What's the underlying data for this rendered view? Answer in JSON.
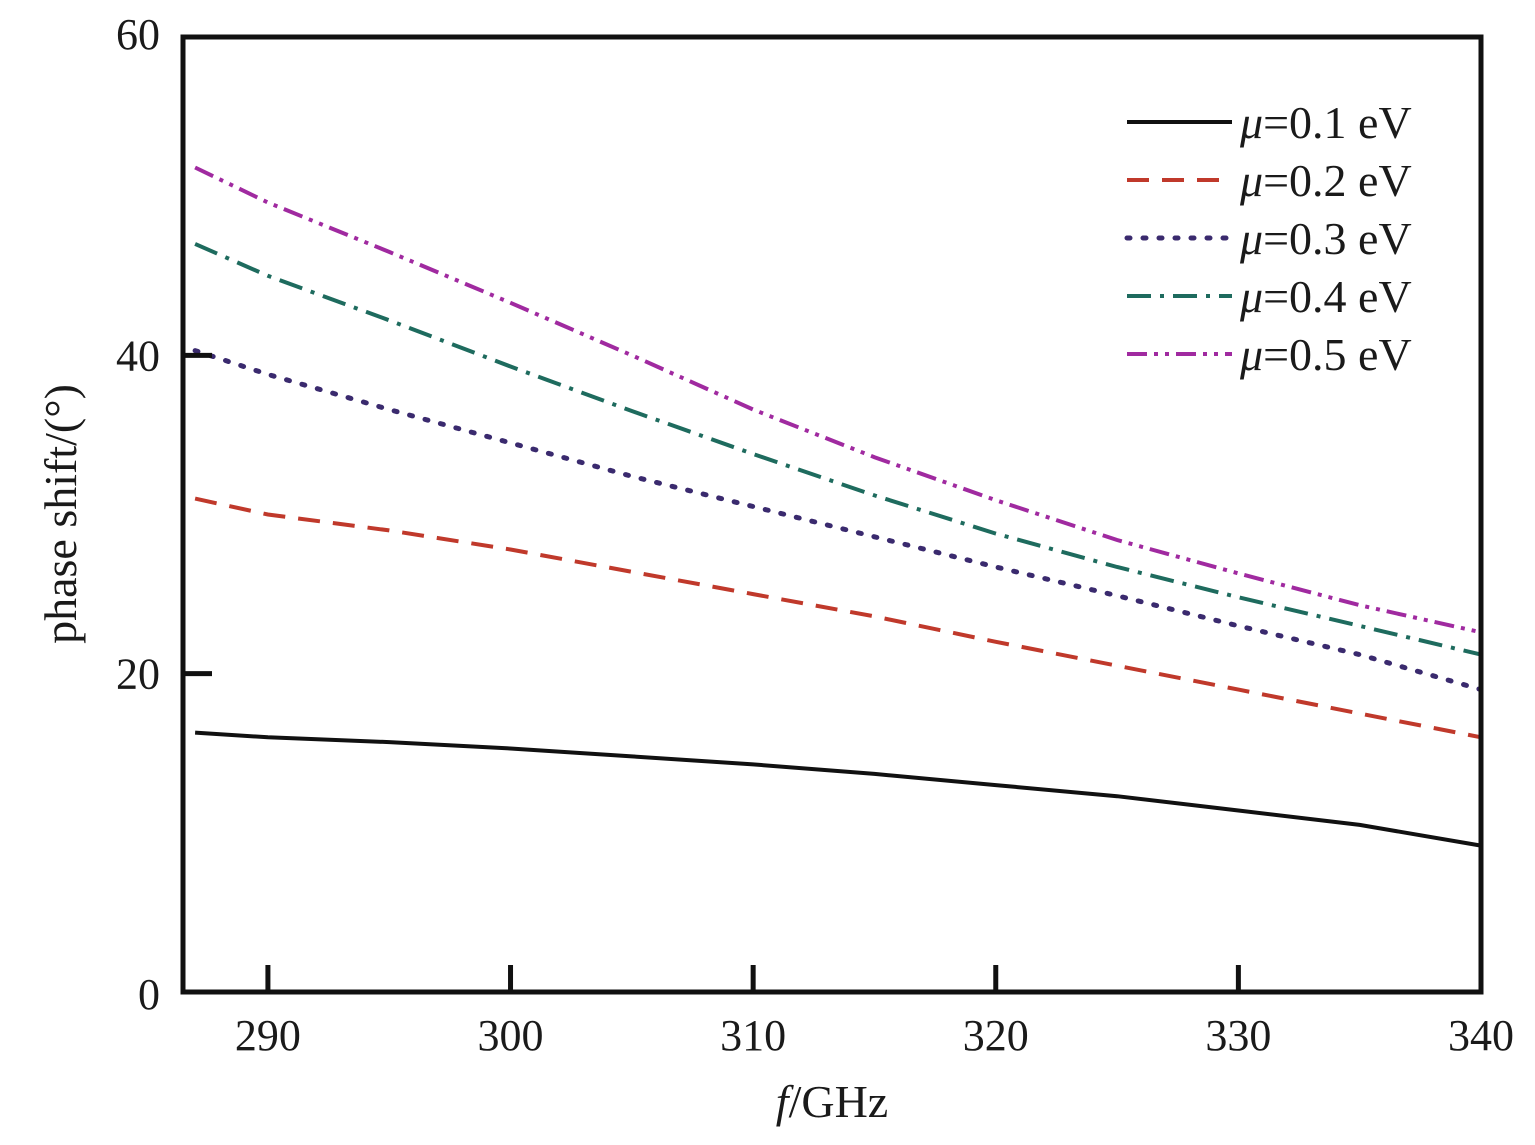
{
  "chart_data": {
    "type": "line",
    "xlabel_italic": "f",
    "xlabel_rest": "/GHz",
    "ylabel": "phase shift/(°)",
    "xlim": [
      286.5,
      340
    ],
    "ylim": [
      0,
      60
    ],
    "xticks": [
      290,
      300,
      310,
      320,
      330,
      340
    ],
    "yticks": [
      0,
      20,
      40,
      60
    ],
    "grid": false,
    "legend_position": "top-right",
    "series": [
      {
        "name": "=0.1 eV",
        "symbol": "μ",
        "color": "#111111",
        "dash": "solid",
        "x": [
          287,
          290,
          295,
          300,
          305,
          310,
          315,
          320,
          325,
          330,
          335,
          340
        ],
        "y": [
          16.3,
          16.0,
          15.7,
          15.3,
          14.8,
          14.3,
          13.7,
          13.0,
          12.3,
          11.4,
          10.5,
          9.2
        ]
      },
      {
        "name": "=0.2 eV",
        "symbol": "μ",
        "color": "#c0392b",
        "dash": "dashed",
        "x": [
          287,
          290,
          295,
          300,
          305,
          310,
          315,
          320,
          325,
          330,
          335,
          340
        ],
        "y": [
          31.0,
          30.0,
          29.0,
          27.8,
          26.4,
          25.0,
          23.6,
          22.0,
          20.5,
          19.0,
          17.5,
          16.0
        ]
      },
      {
        "name": "=0.3 eV",
        "symbol": "μ",
        "color": "#3a2a6e",
        "dash": "dotted",
        "x": [
          287,
          290,
          295,
          300,
          305,
          310,
          315,
          320,
          325,
          330,
          335,
          340
        ],
        "y": [
          40.3,
          38.8,
          36.6,
          34.5,
          32.4,
          30.5,
          28.6,
          26.7,
          24.9,
          23.0,
          21.2,
          19.0
        ]
      },
      {
        "name": "=0.4 eV",
        "symbol": "μ",
        "color": "#1e6b5e",
        "dash": "dashdot",
        "x": [
          287,
          290,
          295,
          300,
          305,
          310,
          315,
          320,
          325,
          330,
          335,
          340
        ],
        "y": [
          47.0,
          45.0,
          42.2,
          39.3,
          36.5,
          33.8,
          31.2,
          28.8,
          26.7,
          24.8,
          23.0,
          21.2
        ]
      },
      {
        "name": "=0.5 eV",
        "symbol": "μ",
        "color": "#a02aa0",
        "dash": "dashdotdot",
        "x": [
          287,
          290,
          295,
          300,
          305,
          310,
          315,
          320,
          325,
          330,
          335,
          340
        ],
        "y": [
          51.8,
          49.6,
          46.5,
          43.3,
          40.0,
          36.6,
          33.6,
          30.9,
          28.4,
          26.3,
          24.3,
          22.6
        ]
      }
    ]
  }
}
